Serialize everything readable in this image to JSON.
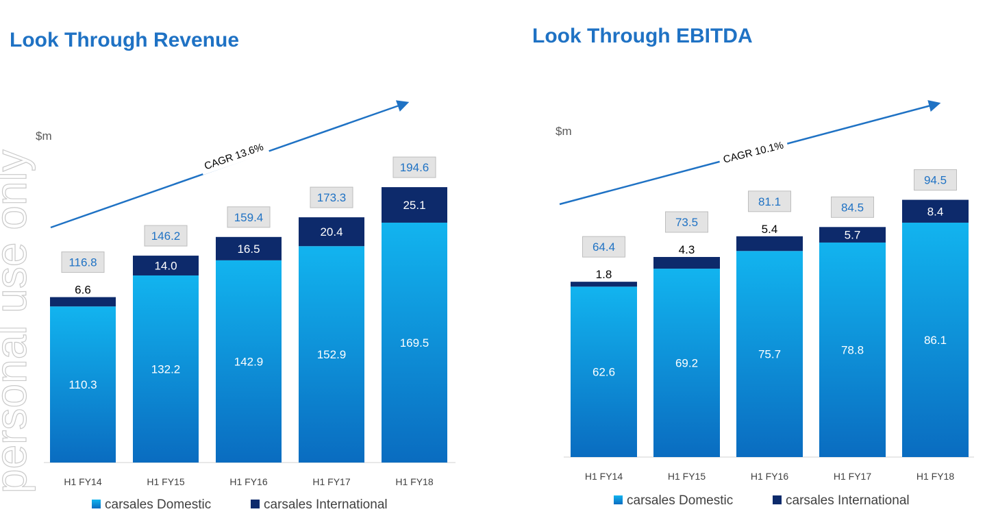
{
  "watermark": "personal use only",
  "colors": {
    "domestic_top": "#12b4ef",
    "domestic_bottom": "#0a6cc0",
    "international": "#0d2a6b",
    "title": "#1f72c4",
    "arrow": "#1f72c4",
    "total_box_fill": "#e3e3e3",
    "total_box_border": "#bdbdbd",
    "total_text": "#1f72c4"
  },
  "chart_data": [
    {
      "type": "bar",
      "stacked": true,
      "title": "Look Through Revenue",
      "unit_label": "$m",
      "categories": [
        "H1 FY14",
        "H1 FY15",
        "H1 FY16",
        "H1 FY17",
        "H1 FY18"
      ],
      "series": [
        {
          "name": "carsales Domestic",
          "values": [
            110.3,
            132.2,
            142.9,
            152.9,
            169.5
          ]
        },
        {
          "name": "carsales International",
          "values": [
            6.6,
            14.0,
            16.5,
            20.4,
            25.1
          ]
        }
      ],
      "value_labels": {
        "domestic": [
          "110.3",
          "132.2",
          "142.9",
          "152.9",
          "169.5"
        ],
        "international": [
          "6.6",
          "14.0",
          "16.5",
          "20.4",
          "25.1"
        ]
      },
      "totals": [
        "116.8",
        "146.2",
        "159.4",
        "173.3",
        "194.6"
      ],
      "annotation": "CAGR 13.6%",
      "legend": [
        "carsales Domestic",
        "carsales International"
      ],
      "legend_position": "bottom",
      "ylim": [
        0,
        230
      ]
    },
    {
      "type": "bar",
      "stacked": true,
      "title": "Look Through EBITDA",
      "unit_label": "$m",
      "categories": [
        "H1 FY14",
        "H1 FY15",
        "H1 FY16",
        "H1 FY17",
        "H1 FY18"
      ],
      "series": [
        {
          "name": "carsales Domestic",
          "values": [
            62.6,
            69.2,
            75.7,
            78.8,
            86.1
          ]
        },
        {
          "name": "carsales International",
          "values": [
            1.8,
            4.3,
            5.4,
            5.7,
            8.4
          ]
        }
      ],
      "value_labels": {
        "domestic": [
          "62.6",
          "69.2",
          "75.7",
          "78.8",
          "86.1"
        ],
        "international": [
          "1.8",
          "4.3",
          "5.4",
          "5.7",
          "8.4"
        ]
      },
      "totals": [
        "64.4",
        "73.5",
        "81.1",
        "84.5",
        "94.5"
      ],
      "annotation": "CAGR 10.1%",
      "legend": [
        "carsales Domestic",
        "carsales International"
      ],
      "legend_position": "bottom",
      "ylim": [
        0,
        110
      ]
    }
  ]
}
